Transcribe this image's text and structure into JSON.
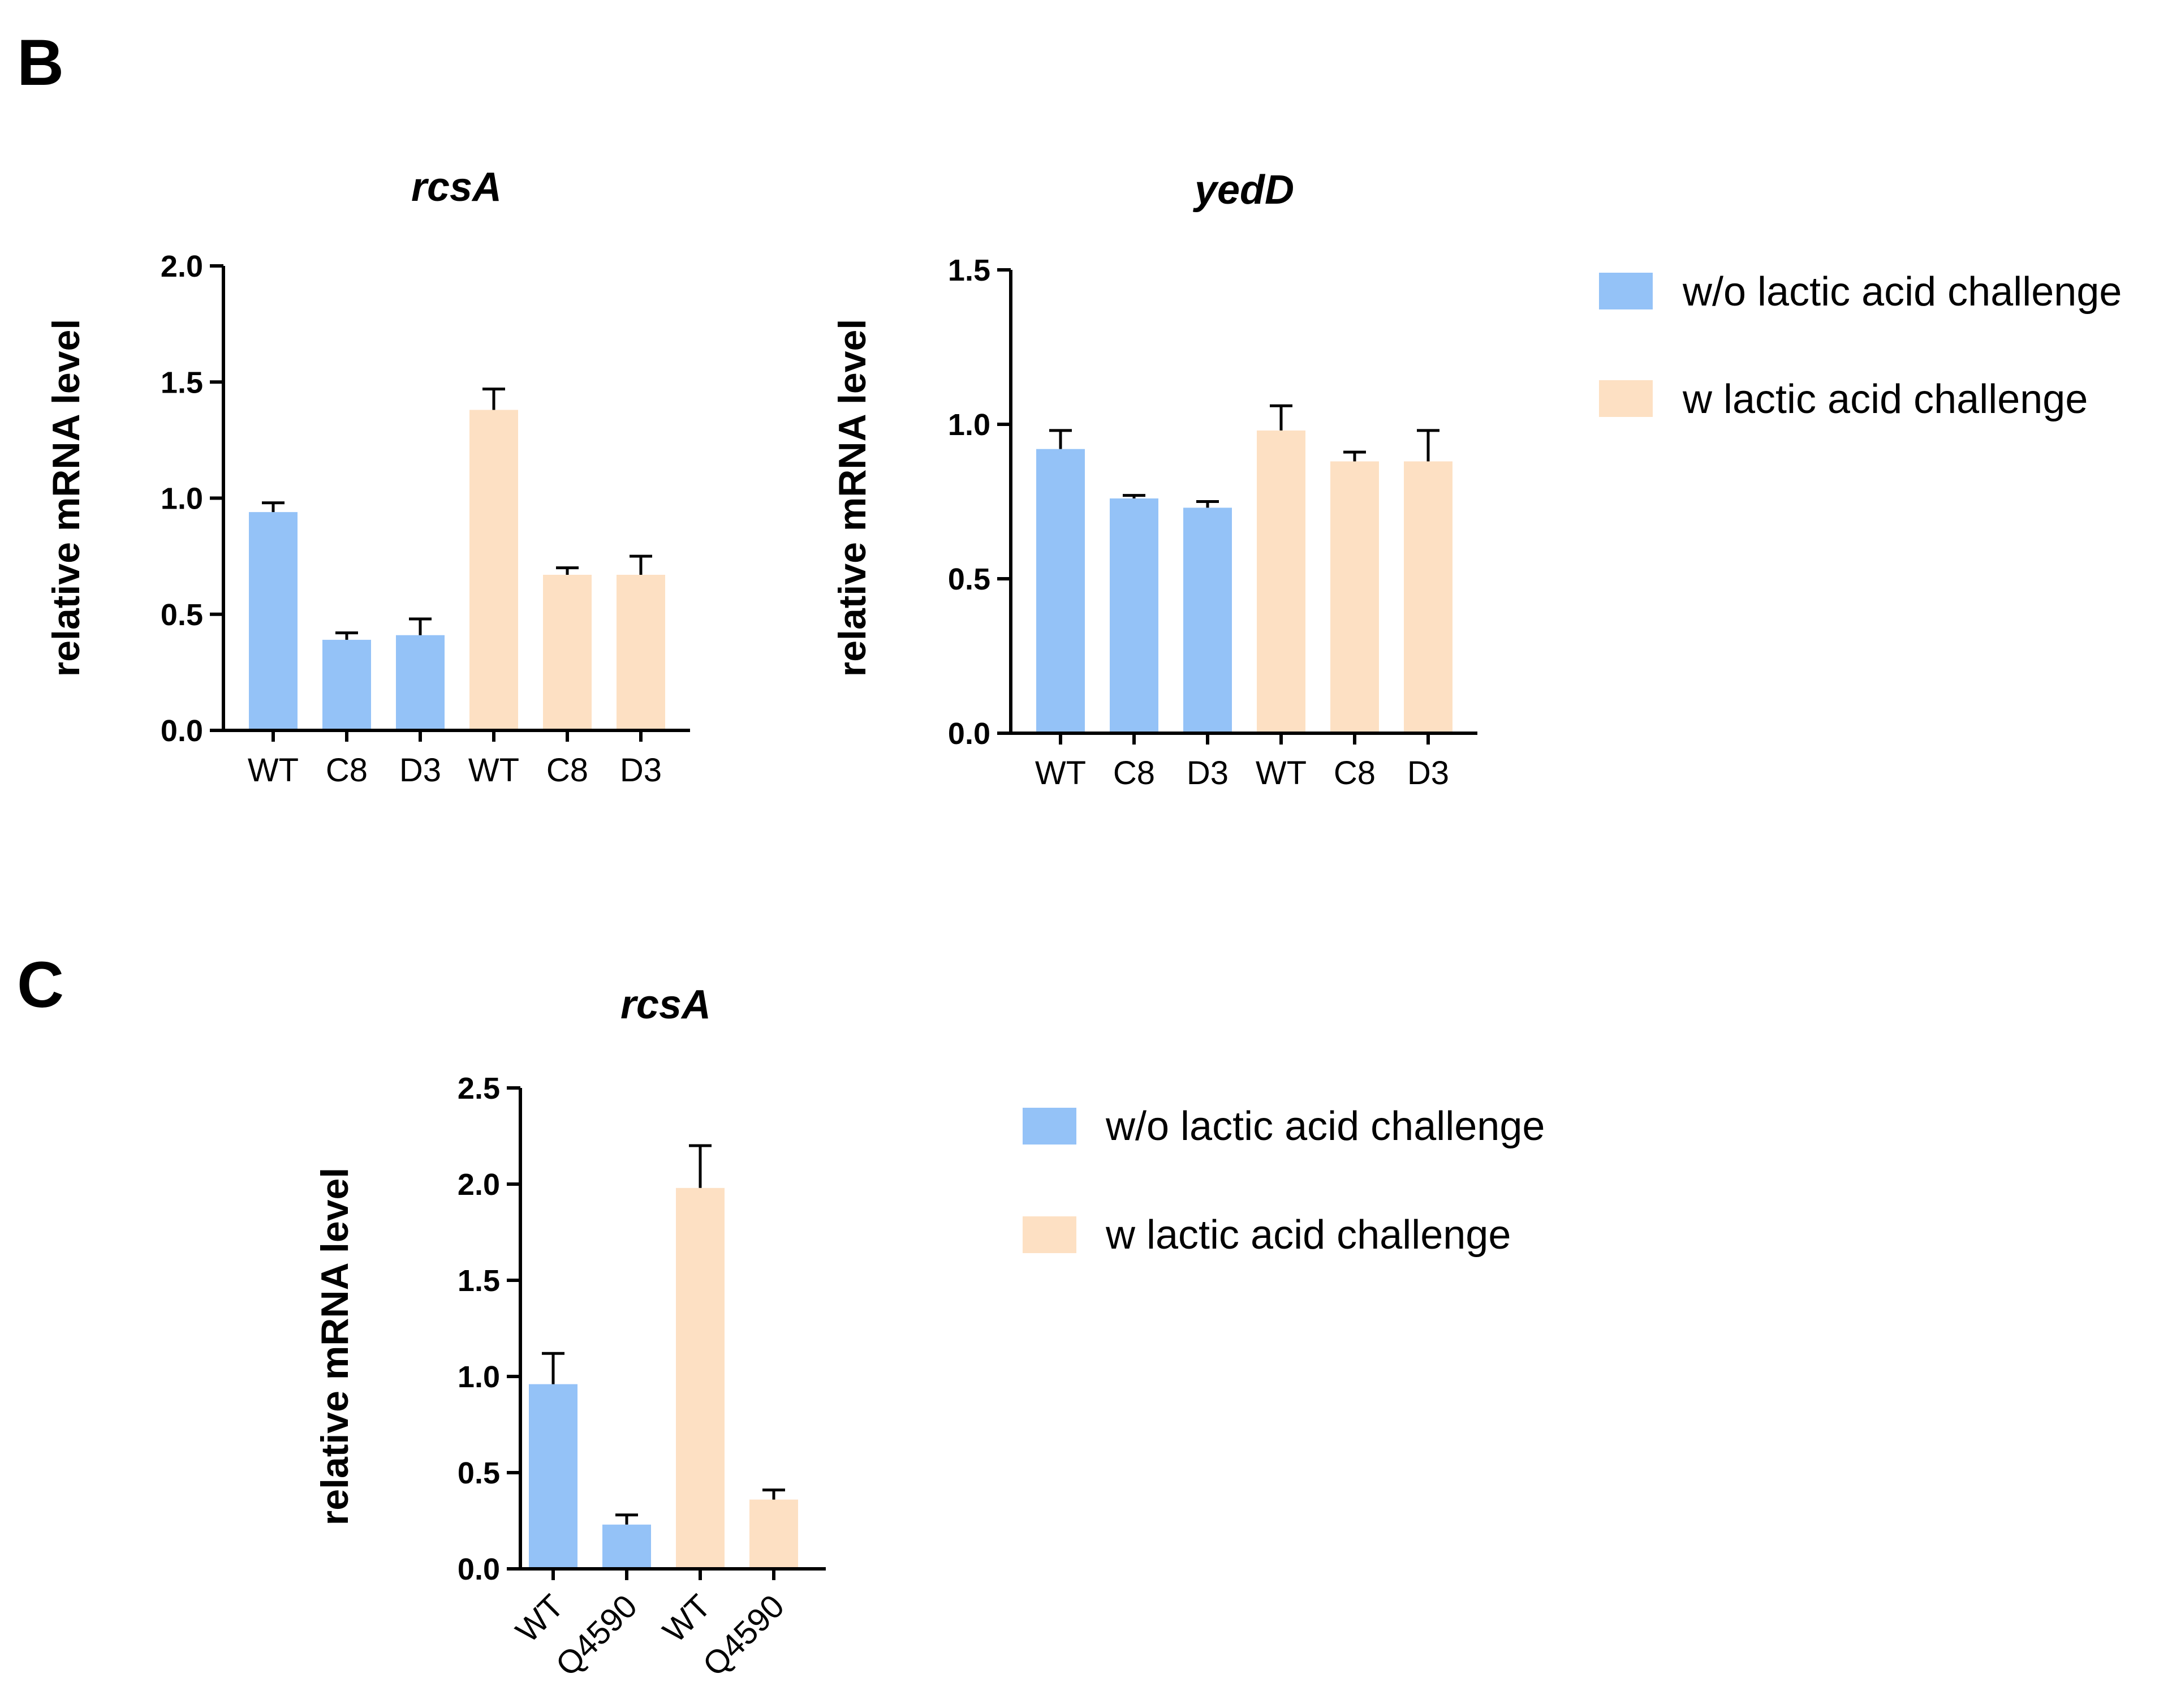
{
  "panels": {
    "B": "B",
    "C": "C"
  },
  "colors": {
    "without": "#94c2f7",
    "with": "#fde0c3"
  },
  "legend": {
    "without": "w/o lactic acid challenge",
    "with": "w lactic acid challenge"
  },
  "chart_data": [
    {
      "id": "b-rcsa",
      "type": "bar",
      "title": "rcsA",
      "ylabel": "relative mRNA level",
      "xlabel": "",
      "ylim": [
        0,
        2.0
      ],
      "yticks": [
        "0.0",
        "0.5",
        "1.0",
        "1.5",
        "2.0"
      ],
      "categories": [
        "WT",
        "C8",
        "D3",
        "WT",
        "C8",
        "D3"
      ],
      "groups": [
        "without",
        "without",
        "without",
        "with",
        "with",
        "with"
      ],
      "values": [
        0.94,
        0.39,
        0.41,
        1.38,
        0.67,
        0.67
      ],
      "errors": [
        0.04,
        0.03,
        0.07,
        0.09,
        0.03,
        0.08
      ]
    },
    {
      "id": "b-yedd",
      "type": "bar",
      "title": "yedD",
      "ylabel": "relative mRNA level",
      "xlabel": "",
      "ylim": [
        0,
        1.5
      ],
      "yticks": [
        "0.0",
        "0.5",
        "1.0",
        "1.5"
      ],
      "categories": [
        "WT",
        "C8",
        "D3",
        "WT",
        "C8",
        "D3"
      ],
      "groups": [
        "without",
        "without",
        "without",
        "with",
        "with",
        "with"
      ],
      "values": [
        0.92,
        0.76,
        0.73,
        0.98,
        0.88,
        0.88
      ],
      "errors": [
        0.06,
        0.01,
        0.02,
        0.08,
        0.03,
        0.1
      ]
    },
    {
      "id": "c-rcsa",
      "type": "bar",
      "title": "rcsA",
      "ylabel": "relative mRNA level",
      "xlabel": "",
      "ylim": [
        0,
        2.5
      ],
      "yticks": [
        "0.0",
        "0.5",
        "1.0",
        "1.5",
        "2.0",
        "2.5"
      ],
      "categories": [
        "WT",
        "Q4590",
        "WT",
        "Q4590"
      ],
      "groups": [
        "without",
        "without",
        "with",
        "with"
      ],
      "values": [
        0.96,
        0.23,
        1.98,
        0.36
      ],
      "errors": [
        0.16,
        0.05,
        0.22,
        0.05
      ]
    }
  ]
}
